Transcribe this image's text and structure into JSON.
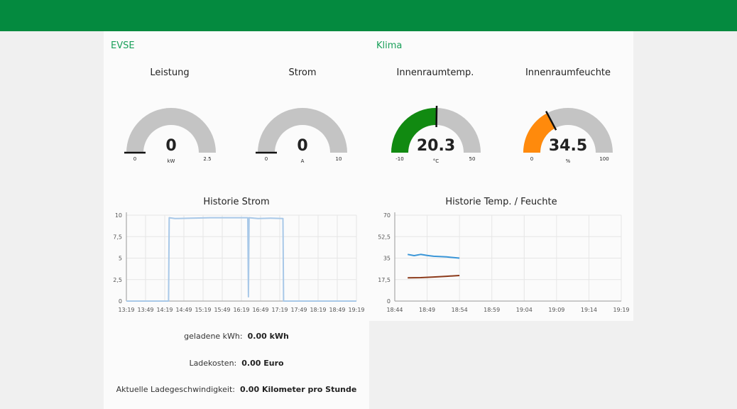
{
  "evse": {
    "title": "EVSE",
    "gauges": [
      {
        "title": "Leistung",
        "value": "0",
        "level": 0,
        "min": "0",
        "max": "2.5",
        "unit": "kW",
        "color": "#00b500"
      },
      {
        "title": "Strom",
        "value": "0",
        "level": 0,
        "min": "0",
        "max": "10",
        "unit": "A",
        "color": "#00b500"
      }
    ],
    "chart_title": "Historie Strom",
    "stats": [
      {
        "label": "geladene kWh:",
        "value": "0.00 kWh"
      },
      {
        "label": "Ladekosten:",
        "value": "0.00 Euro"
      },
      {
        "label": "Aktuelle Ladegeschwindigkeit:",
        "value": "0.00 Kilometer pro Stunde"
      }
    ]
  },
  "klima": {
    "title": "Klima",
    "gauges": [
      {
        "title": "Innenraumtemp.",
        "value": "20.3",
        "level": 0.505,
        "min": "-10",
        "max": "50",
        "unit": "°C",
        "color": "#118a11"
      },
      {
        "title": "Innenraumfeuchte",
        "value": "34.5",
        "level": 0.345,
        "min": "0",
        "max": "100",
        "unit": "%",
        "color": "#ff8a0c"
      }
    ],
    "chart_title": "Historie Temp. / Feuchte"
  },
  "chart_data": [
    {
      "type": "line",
      "title": "Historie Strom",
      "ylim": [
        0,
        10
      ],
      "y_ticks": [
        "0",
        "2,5",
        "5",
        "7,5",
        "10"
      ],
      "y_tick_values": [
        0,
        2.5,
        5,
        7.5,
        10
      ],
      "x_ticks": [
        "13:19",
        "13:49",
        "14:19",
        "14:49",
        "15:19",
        "15:49",
        "16:19",
        "16:49",
        "17:19",
        "17:49",
        "18:19",
        "18:49",
        "19:19"
      ],
      "grid": true,
      "series": [
        {
          "color": "#a8c8e8",
          "points": [
            [
              "13:19",
              0
            ],
            [
              "14:25",
              0
            ],
            [
              "14:26",
              9.7
            ],
            [
              "14:35",
              9.6
            ],
            [
              "15:00",
              9.65
            ],
            [
              "15:30",
              9.7
            ],
            [
              "16:00",
              9.7
            ],
            [
              "16:29",
              9.7
            ],
            [
              "16:30",
              0.5
            ],
            [
              "16:31",
              9.7
            ],
            [
              "16:45",
              9.6
            ],
            [
              "17:05",
              9.65
            ],
            [
              "17:24",
              9.6
            ],
            [
              "17:25",
              0
            ],
            [
              "19:19",
              0
            ]
          ]
        }
      ]
    },
    {
      "type": "line",
      "title": "Historie Temp. / Feuchte",
      "ylim": [
        0,
        70
      ],
      "y_ticks": [
        "0",
        "17,5",
        "35",
        "52,5",
        "70"
      ],
      "y_tick_values": [
        0,
        17.5,
        35,
        52.5,
        70
      ],
      "x_ticks": [
        "18:44",
        "18:49",
        "18:54",
        "18:59",
        "19:04",
        "19:09",
        "19:14",
        "19:19"
      ],
      "grid": true,
      "series": [
        {
          "color": "#3a96d8",
          "points": [
            [
              "18:46",
              38
            ],
            [
              "18:47",
              37
            ],
            [
              "18:48",
              38
            ],
            [
              "18:49",
              37.2
            ],
            [
              "18:50",
              36.5
            ],
            [
              "18:52",
              36
            ],
            [
              "18:54",
              35
            ]
          ]
        },
        {
          "color": "#8c3a1a",
          "points": [
            [
              "18:46",
              19
            ],
            [
              "18:48",
              19.1
            ],
            [
              "18:50",
              19.6
            ],
            [
              "18:52",
              20.2
            ],
            [
              "18:54",
              20.8
            ]
          ]
        }
      ]
    }
  ]
}
